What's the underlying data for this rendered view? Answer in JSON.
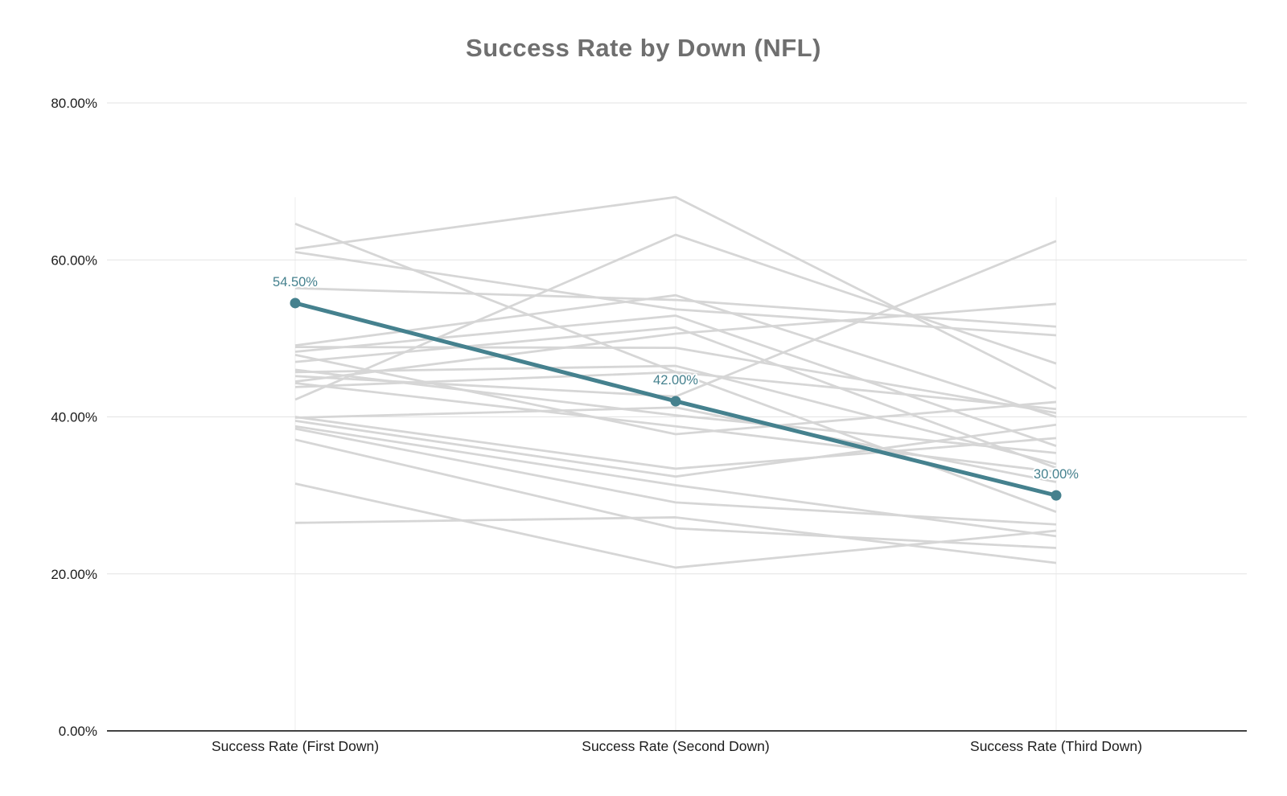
{
  "chart_data": {
    "type": "line",
    "title": "Success Rate by Down (NFL)",
    "categories": [
      "Success Rate (First Down)",
      "Success Rate (Second Down)",
      "Success Rate (Third Down)"
    ],
    "y_axis": {
      "min": 0,
      "max": 80,
      "tick_values": [
        0,
        20,
        40,
        60,
        80
      ],
      "tick_labels": [
        "0.00%",
        "20.00%",
        "40.00%",
        "60.00%",
        "80.00%"
      ],
      "unit": "percent"
    },
    "grid": true,
    "legend": "none",
    "highlighted_series": {
      "values": [
        54.5,
        42.0,
        30.0
      ],
      "point_labels": [
        "54.50%",
        "42.00%",
        "30.00%"
      ],
      "color": "#45818e"
    },
    "background_series_estimated": {
      "color": "#d6d6d6",
      "lines": [
        [
          64.6,
          45.7,
          41.0
        ],
        [
          61.4,
          68.0,
          43.6
        ],
        [
          61.0,
          53.7,
          50.4
        ],
        [
          56.4,
          54.9,
          51.5
        ],
        [
          49.1,
          55.5,
          40.0
        ],
        [
          48.9,
          48.8,
          40.5
        ],
        [
          48.3,
          52.9,
          36.3
        ],
        [
          47.9,
          37.8,
          41.9
        ],
        [
          47.0,
          51.4,
          33.5
        ],
        [
          46.0,
          40.2,
          35.4
        ],
        [
          45.7,
          46.5,
          34.0
        ],
        [
          45.2,
          42.6,
          62.4
        ],
        [
          44.5,
          50.6,
          54.4
        ],
        [
          44.3,
          38.8,
          33.0
        ],
        [
          43.8,
          45.7,
          27.9
        ],
        [
          42.2,
          63.2,
          46.8
        ],
        [
          40.0,
          33.4,
          37.3
        ],
        [
          39.9,
          41.2,
          31.7
        ],
        [
          39.5,
          32.4,
          39.0
        ],
        [
          38.8,
          31.3,
          24.8
        ],
        [
          38.5,
          29.1,
          26.3
        ],
        [
          37.1,
          25.8,
          23.3
        ],
        [
          31.5,
          20.8,
          25.5
        ],
        [
          26.5,
          27.2,
          21.4
        ]
      ]
    }
  },
  "colors": {
    "title": "#6f6f6f",
    "axis_text": "#1c1c1c",
    "gridline": "#e3e3e3",
    "baseline": "#424242",
    "column_guide": "#eeeeee",
    "highlight": "#45818e",
    "background_lines": "#d6d6d6"
  }
}
